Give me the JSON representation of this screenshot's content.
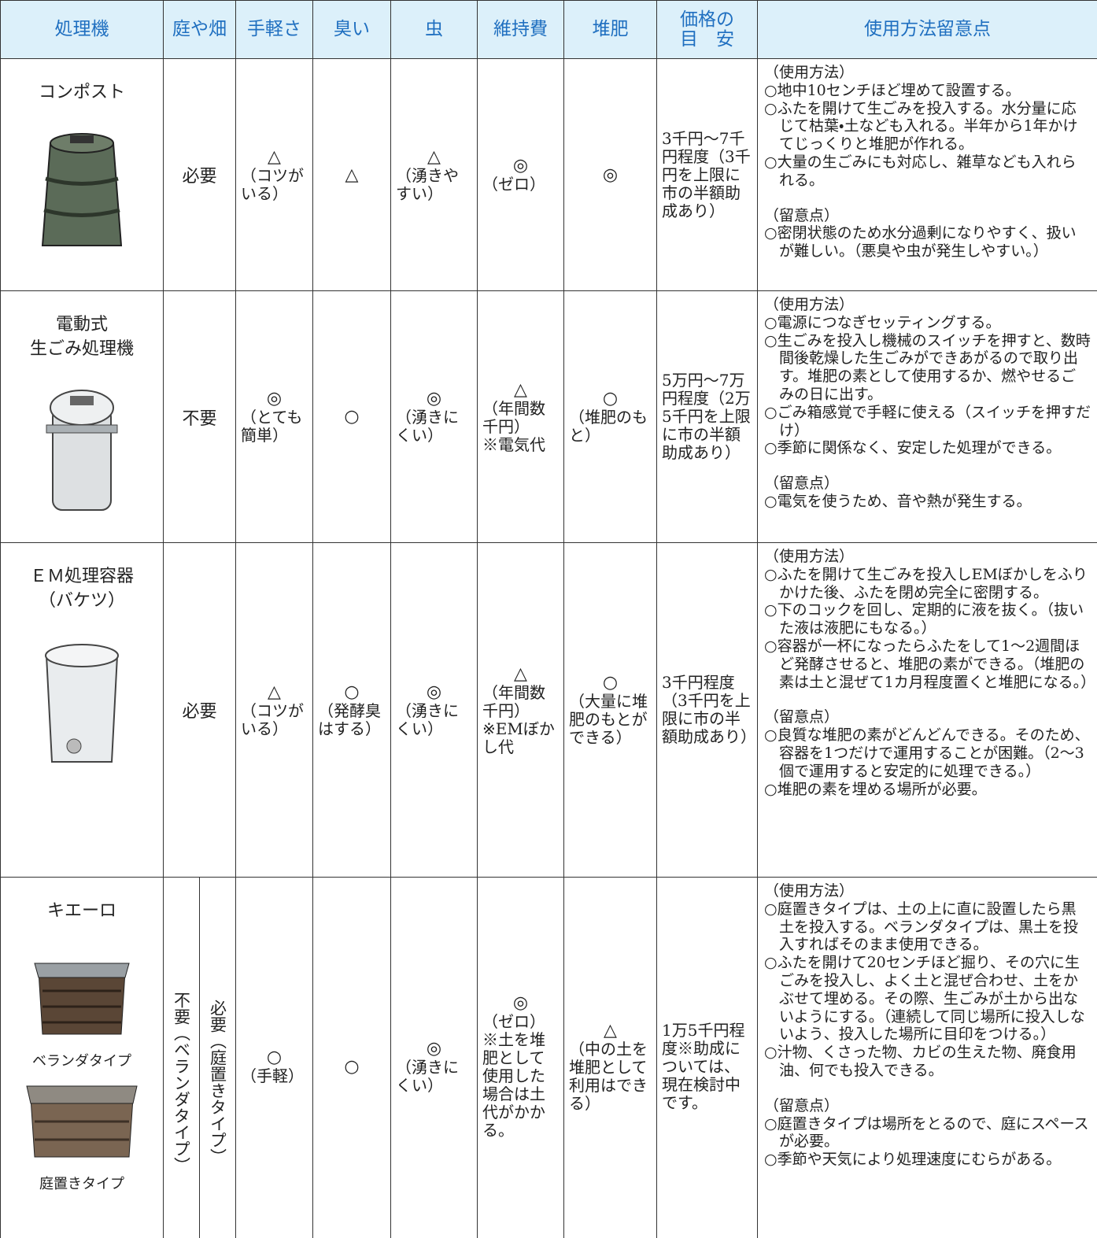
{
  "header": [
    "処理機",
    "庭や畑",
    "手軽さ",
    "臭い",
    "虫",
    "維持費",
    "堆肥",
    [
      "価格の",
      "目　安"
    ],
    "使用方法留意点"
  ],
  "rows": [
    {
      "name": [
        "コンポスト"
      ],
      "garden": "必要",
      "ease": {
        "symbol": "△",
        "note": "（コツがいる）"
      },
      "smell": {
        "symbol": "△"
      },
      "bugs": {
        "symbol": "△",
        "note": "（湧きやすい）"
      },
      "upkeep": {
        "symbol": "◎",
        "note": "（ゼロ）"
      },
      "compost": {
        "symbol": "◎"
      },
      "price": "3千円～7千円程度（3千円を上限に市の半額助成あり）",
      "usage": {
        "heading": "（使用方法）",
        "items": [
          "○地中10センチほど埋めて設置する。",
          "○ふたを開けて生ごみを投入する。水分量に応じて枯葉・土なども入れる。半年から1年かけてじっくりと堆肥が作れる。",
          "○大量の生ごみにも対応し、雑草なども入れられる。"
        ]
      },
      "caution": {
        "heading": "（留意点）",
        "items": [
          "○密閉状態のため水分過剰になりやすく、扱いが難しい。（悪臭や虫が発生しやすい。）"
        ]
      }
    },
    {
      "name": [
        "電動式",
        "生ごみ処理機"
      ],
      "garden": "不要",
      "ease": {
        "symbol": "◎",
        "note": "（とても簡単）"
      },
      "smell": {
        "symbol": "○"
      },
      "bugs": {
        "symbol": "◎",
        "note": "（湧きにくい）"
      },
      "upkeep": {
        "symbol": "△",
        "note": "（年間数千円）",
        "extra": "※電気代"
      },
      "compost": {
        "symbol": "○",
        "note": "（堆肥のもと）"
      },
      "price": "5万円～7万円程度（2万5千円を上限に市の半額助成あり）",
      "usage": {
        "heading": "（使用方法）",
        "items": [
          "○電源につなぎセッティングする。",
          "○生ごみを投入し機械のスイッチを押すと、数時間後乾燥した生ごみができあがるので取り出す。堆肥の素として使用するか、燃やせるごみの日に出す。",
          "○ごみ箱感覚で手軽に使える（スイッチを押すだけ）",
          "○季節に関係なく、安定した処理ができる。"
        ]
      },
      "caution": {
        "heading": "（留意点）",
        "items": [
          "○電気を使うため、音や熱が発生する。"
        ]
      }
    },
    {
      "name": [
        "ＥＭ処理容器",
        "（バケツ）"
      ],
      "garden": "必要",
      "ease": {
        "symbol": "△",
        "note": "（コツがいる）"
      },
      "smell": {
        "symbol": "○",
        "note": "（発酵臭はする）"
      },
      "bugs": {
        "symbol": "◎",
        "note": "（湧きにくい）"
      },
      "upkeep": {
        "symbol": "△",
        "note": "（年間数千円）",
        "extra": "※EMぼかし代"
      },
      "compost": {
        "symbol": "○",
        "note": "（大量に堆肥のもとができる）"
      },
      "price": "3千円程度（3千円を上限に市の半額助成あり）",
      "usage": {
        "heading": "（使用方法）",
        "items": [
          "○ふたを開けて生ごみを投入しEMぼかしをふりかけた後、ふたを閉め完全に密閉する。",
          "○下のコックを回し、定期的に液を抜く。（抜いた液は液肥にもなる。）",
          "○容器が一杯になったらふたをして1～2週間ほど発酵させると、堆肥の素ができる。（堆肥の素は土と混ぜて1カ月程度置くと堆肥になる。）"
        ]
      },
      "caution": {
        "heading": "（留意点）",
        "items": [
          "○良質な堆肥の素がどんどんできる。そのため、容器を1つだけで運用することが困難。（2～3個で運用すると安定的に処理できる。）",
          "○堆肥の素を埋める場所が必要。"
        ]
      }
    },
    {
      "name": [
        "キエーロ"
      ],
      "types": [
        "ベランダタイプ",
        "庭置きタイプ"
      ],
      "garden_split": [
        "不要（ベランダタイプ）",
        "必要（庭置きタイプ）"
      ],
      "ease": {
        "symbol": "○",
        "note": "（手軽）"
      },
      "smell": {
        "symbol": "○"
      },
      "bugs": {
        "symbol": "◎",
        "note": "（湧きにくい）"
      },
      "upkeep": {
        "symbol": "◎",
        "note": "（ゼロ）",
        "extra": "※土を堆肥として使用した場合は土代がかかる。"
      },
      "compost": {
        "symbol": "△",
        "note": "（中の土を堆肥として利用はできる）"
      },
      "price": "1万5千円程度※助成については、現在検討中です。",
      "usage": {
        "heading": "（使用方法）",
        "items": [
          "○庭置きタイプは、土の上に直に設置したら黒土を投入する。ベランダタイプは、黒土を投入すればそのまま使用できる。",
          "○ふたを開けて20センチほど掘り、その穴に生ごみを投入し、よく土と混ぜ合わせ、土をかぶせて埋める。その際、生ごみが土から出ないようにする。（連続して同じ場所に投入しないよう、投入した場所に目印をつける。）",
          "○汁物、くさった物、カビの生えた物、廃食用油、何でも投入できる。"
        ]
      },
      "caution": {
        "heading": "（留意点）",
        "items": [
          "○庭置きタイプは場所をとるので、庭にスペースが必要。",
          "○季節や天気により処理速度にむらがある。"
        ]
      }
    }
  ]
}
